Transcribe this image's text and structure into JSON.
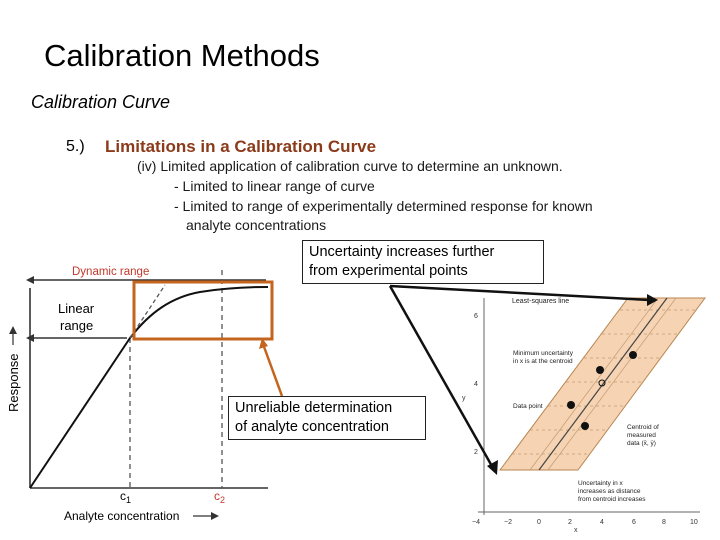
{
  "slide": {
    "title": "Calibration Methods",
    "subtitle": "Calibration Curve",
    "item_number": "5.)",
    "heading": "Limitations in a Calibration Curve",
    "points": [
      "(iv)  Limited application of calibration curve to determine an unknown.",
      "- Limited to linear range of curve",
      "- Limited to range of experimentally determined response for known",
      "analyte concentrations"
    ],
    "callouts": {
      "uncertainty": [
        "Uncertainty increases further",
        "from experimental points"
      ],
      "unreliable": [
        "Unreliable determination",
        "of analyte concentration"
      ]
    }
  },
  "left_figure": {
    "dynamic_range_label": "Dynamic range",
    "linear_label_1": "Linear",
    "linear_label_2": "range",
    "y_axis_label": "Response",
    "x_axis_label": "Analyte concentration",
    "c1_label": "c",
    "c1_sub": "1",
    "c2_label": "c",
    "c2_sub": "2",
    "accent_color": "#c0392b",
    "highlight_color": "#d2691e"
  },
  "right_figure": {
    "least_squares_label": "Least-squares line",
    "min_uncertainty": [
      "Minimum uncertainty",
      "in x is at the centroid"
    ],
    "data_point_label": "Data point",
    "centroid": [
      "Centroid of",
      "measured",
      "data (x̄, ȳ)"
    ],
    "uncertainty_x": [
      "Uncertainty in x",
      "increases as distance",
      "from centroid increases"
    ],
    "x_ticks": [
      "−4",
      "−2",
      "0",
      "2",
      "4",
      "6",
      "8",
      "10"
    ],
    "y_ticks": [
      "6",
      "4",
      "2"
    ],
    "x_label": "x",
    "y_label": "y",
    "band_color": "#f5d3b3"
  }
}
